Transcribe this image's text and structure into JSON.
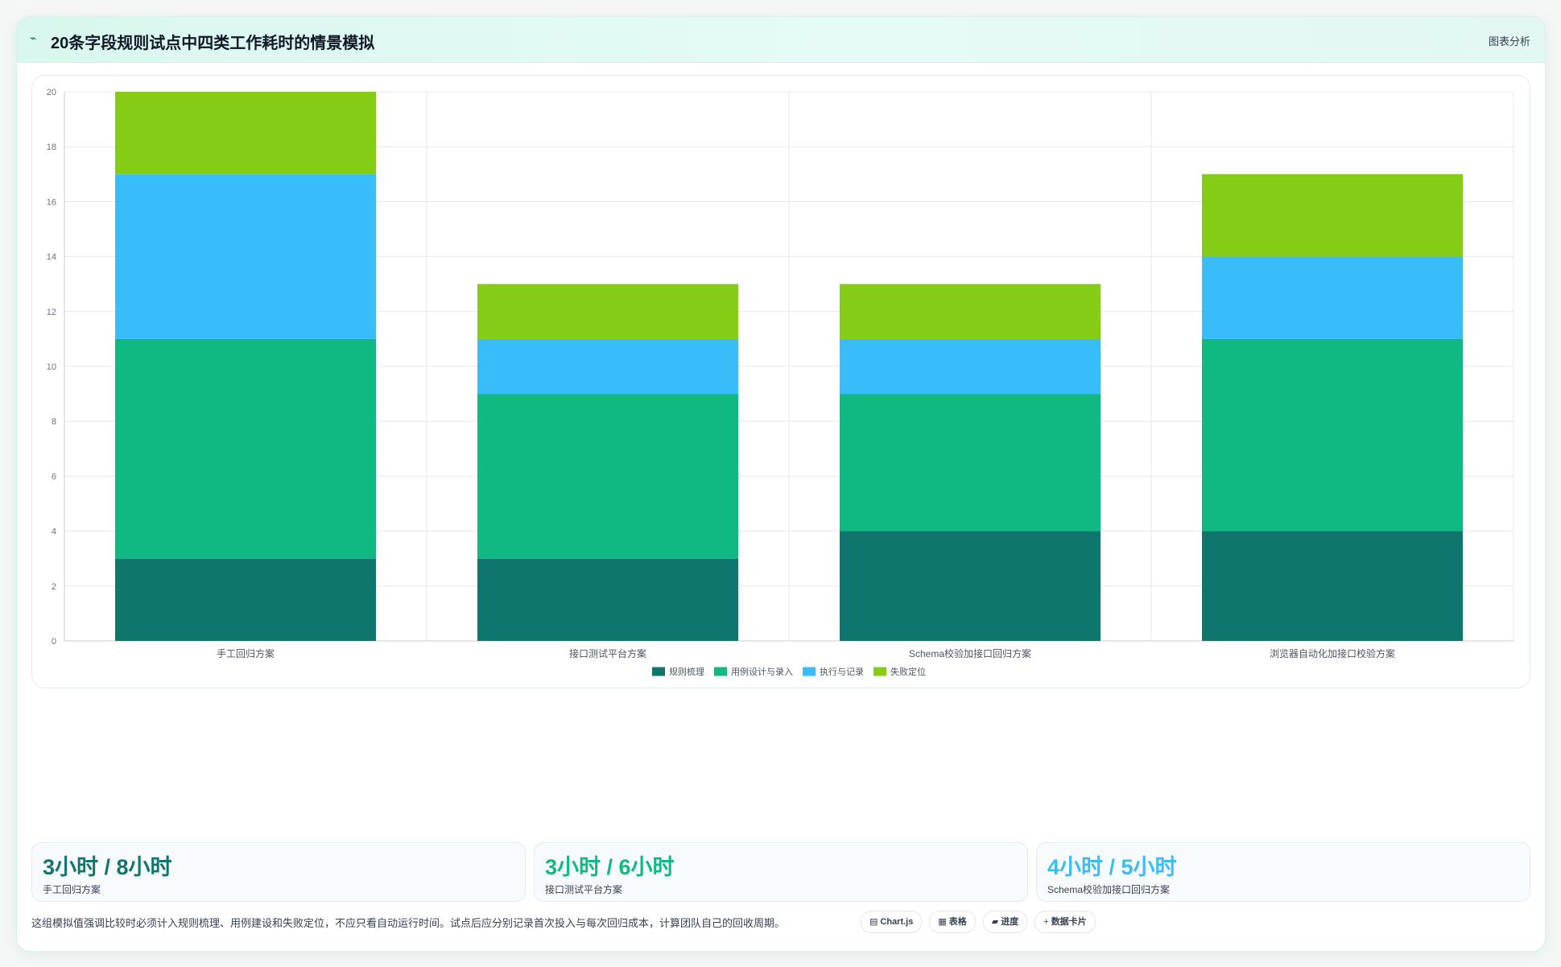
{
  "header": {
    "icon": "sparkline-icon",
    "title": "20条字段规则试点中四类工作耗时的情景模拟",
    "badge": "图表分析"
  },
  "chart_data": {
    "type": "bar",
    "stacked": true,
    "categories": [
      "手工回归方案",
      "接口测试平台方案",
      "Schema校验加接口回归方案",
      "浏览器自动化加接口校验方案"
    ],
    "series": [
      {
        "name": "规则梳理",
        "color": "#0f766e",
        "values": [
          3,
          3,
          4,
          4
        ]
      },
      {
        "name": "用例设计与录入",
        "color": "#10b981",
        "values": [
          8,
          6,
          5,
          7
        ]
      },
      {
        "name": "执行与记录",
        "color": "#38bdf8",
        "values": [
          6,
          2,
          2,
          3
        ]
      },
      {
        "name": "失败定位",
        "color": "#84cc16",
        "values": [
          3,
          2,
          2,
          3
        ]
      }
    ],
    "ylim": [
      0,
      20
    ],
    "yticks": [
      0,
      2,
      4,
      6,
      8,
      10,
      12,
      14,
      16,
      18,
      20
    ],
    "grid": true,
    "legend_position": "bottom"
  },
  "stats": [
    {
      "value": "3小时 / 8小时",
      "label": "手工回归方案",
      "color": "#0f766e"
    },
    {
      "value": "3小时 / 6小时",
      "label": "接口测试平台方案",
      "color": "#10b981"
    },
    {
      "value": "4小时 / 5小时",
      "label": "Schema校验加接口回归方案",
      "color": "#38bdf8"
    }
  ],
  "footnote": "这组模拟值强调比较时必须计入规则梳理、用例建设和失败定位，不应只看自动运行时间。试点后应分别记录首次投入与每次回归成本，计算团队自己的回收周期。",
  "chips": [
    {
      "icon": "▤",
      "icon_name": "chart-icon",
      "label": "Chart.js"
    },
    {
      "icon": "▦",
      "icon_name": "table-icon",
      "label": "表格"
    },
    {
      "icon": "▰",
      "icon_name": "progress-icon",
      "label": "进度"
    },
    {
      "icon": "+",
      "icon_name": "plus-icon",
      "label": "数据卡片"
    }
  ]
}
